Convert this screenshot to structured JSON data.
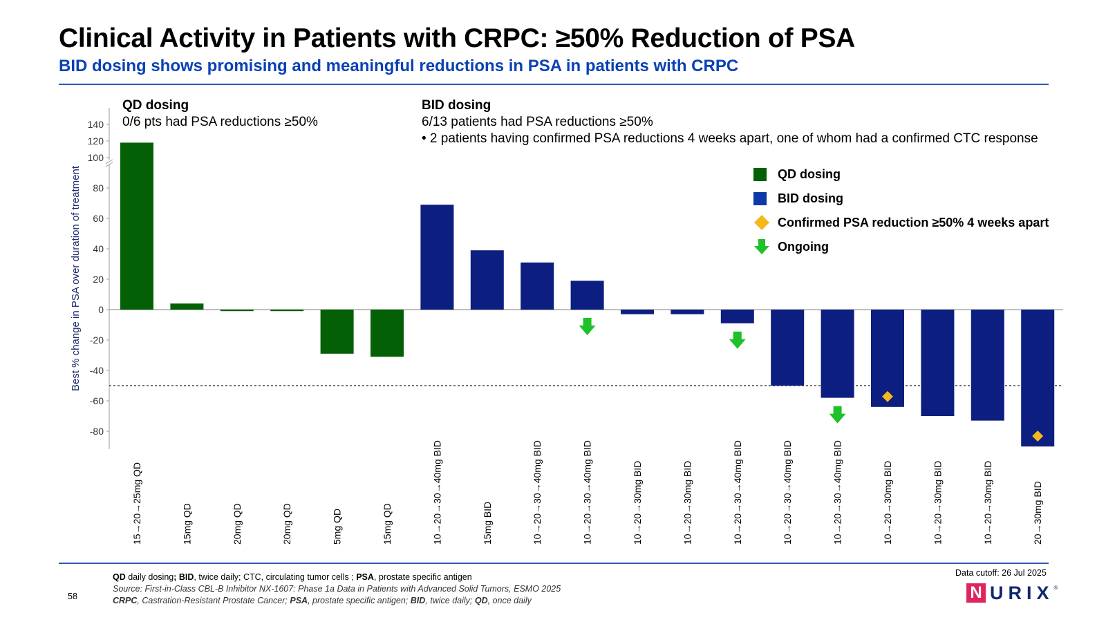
{
  "header": {
    "title": "Clinical Activity in Patients with CRPC: ≥50% Reduction of PSA",
    "subtitle": "BID dosing shows promising and meaningful reductions in PSA in patients with CRPC"
  },
  "annotations": {
    "qd_heading": "QD dosing",
    "qd_text": "0/6 pts had PSA reductions ≥50%",
    "bid_heading": "BID dosing",
    "bid_text": "6/13 patients had PSA reductions ≥50%",
    "bid_bullet": "•  2 patients having confirmed PSA reductions 4 weeks apart, one of whom had a confirmed CTC response"
  },
  "legend": {
    "qd": "QD dosing",
    "bid": "BID dosing",
    "confirmed": "Confirmed PSA reduction ≥50% 4 weeks apart",
    "ongoing": "Ongoing"
  },
  "colors": {
    "qd": "#046006",
    "bid": "#0c1e80",
    "confirmed": "#f5b71c",
    "ongoing": "#1fc12b"
  },
  "chart_data": {
    "type": "bar",
    "ylabel": "Best % change in PSA over duration of treatment",
    "yticks": [
      140,
      120,
      100,
      80,
      60,
      40,
      20,
      0,
      -20,
      -40,
      -60,
      -80
    ],
    "ylim": [
      -90,
      140
    ],
    "axis_break": "between 100 and 120",
    "reference_line": -50,
    "categories": [
      "15→20→25mg QD",
      "15mg QD",
      "20mg QD",
      "20mg QD",
      "5mg QD",
      "15mg QD",
      "10→20→30→40mg BID",
      "15mg BID",
      "10→20→30→40mg BID",
      "10→20→30→40mg BID",
      "10→20→30mg BID",
      "10→20→30mg BID",
      "10→20→30→40mg BID",
      "10→20→30→40mg BID",
      "10→20→30→40mg BID",
      "10→20→30mg BID",
      "10→20→30mg BID",
      "10→20→30mg BID",
      "20→30mg BID"
    ],
    "series": [
      {
        "name": "QD dosing",
        "values": [
          118,
          4,
          -1,
          -1,
          -29,
          -31,
          null,
          null,
          null,
          null,
          null,
          null,
          null,
          null,
          null,
          null,
          null,
          null,
          null
        ]
      },
      {
        "name": "BID dosing",
        "values": [
          null,
          null,
          null,
          null,
          null,
          null,
          69,
          39,
          31,
          19,
          -3,
          -3,
          -9,
          -50,
          -58,
          -64,
          -70,
          -73,
          -90
        ]
      }
    ],
    "confirmed_indices": [
      15,
      18
    ],
    "ongoing_indices": [
      9,
      12,
      14
    ]
  },
  "footer": {
    "line1_parts": [
      {
        "text": "QD",
        "bold": true
      },
      {
        "text": " daily dosing",
        "bold": false
      },
      {
        "text": "; BID",
        "bold": true
      },
      {
        "text": ", twice daily; CTC, circulating tumor cells ; ",
        "bold": false
      },
      {
        "text": "PSA",
        "bold": true
      },
      {
        "text": ", prostate specific antigen",
        "bold": false
      }
    ],
    "source": "Source: First-in-Class CBL-B Inhibitor NX-1607: Phase 1a Data in Patients with Advanced Solid Tumors, ESMO 2025",
    "line3_parts": [
      {
        "text": "CRPC",
        "bold": true
      },
      {
        "text": ", Castration-Resistant Prostate Cancer; ",
        "bold": false
      },
      {
        "text": "PSA",
        "bold": true
      },
      {
        "text": ", prostate specific antigen; ",
        "bold": false
      },
      {
        "text": "BID",
        "bold": true
      },
      {
        "text": ", twice daily; ",
        "bold": false
      },
      {
        "text": "QD",
        "bold": true
      },
      {
        "text": ", once daily",
        "bold": false
      }
    ],
    "page_number": "58",
    "data_cutoff": "Data cutoff: 26 Jul 2025",
    "logo_text": "NURIX"
  }
}
